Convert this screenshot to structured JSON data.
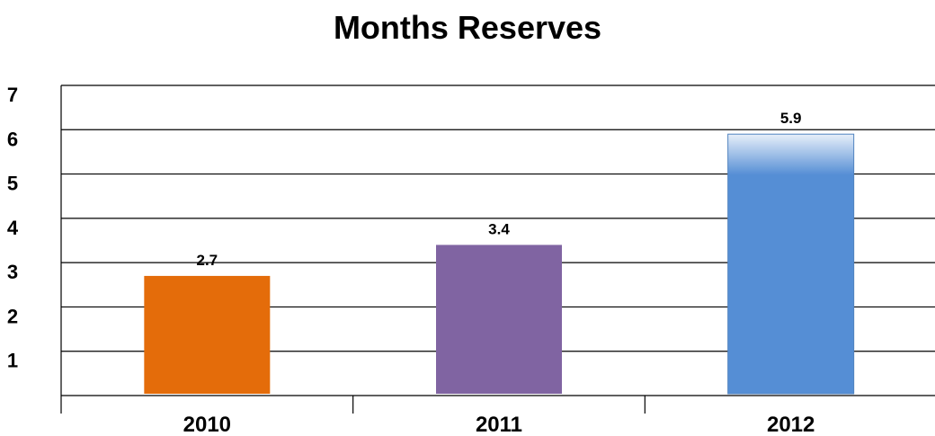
{
  "chart_data": {
    "type": "bar",
    "title": "Months Reserves",
    "categories": [
      "2010",
      "2011",
      "2012"
    ],
    "values": [
      2.7,
      3.4,
      5.9
    ],
    "data_labels": [
      "2.7",
      "3.4",
      "5.9"
    ],
    "colors": [
      "#E46C0A",
      "#8064A2",
      "#558ED5"
    ],
    "ylim": [
      0,
      7
    ],
    "y_ticks": [
      1,
      2,
      3,
      4,
      5,
      6,
      7
    ],
    "y_tick_labels": [
      "1",
      "2",
      "3",
      "4",
      "5",
      "6",
      "7"
    ],
    "xlabel": "",
    "ylabel": "",
    "grid": true,
    "legend": "none"
  }
}
